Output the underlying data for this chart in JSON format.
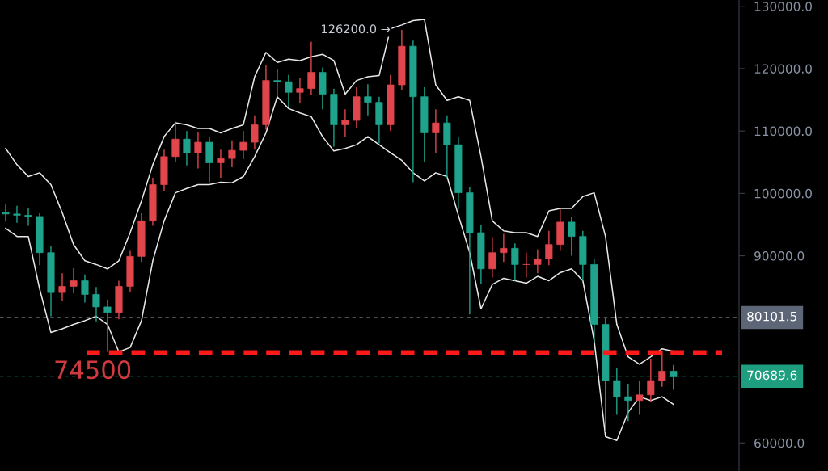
{
  "chart_data": {
    "type": "candlestick",
    "categories": [
      null,
      null,
      null,
      null,
      null,
      null,
      null,
      null,
      null,
      null,
      null,
      null,
      null,
      null,
      null,
      null,
      null,
      null,
      null,
      null,
      null,
      null,
      null,
      null,
      null,
      null,
      null,
      null,
      null,
      null,
      null,
      null,
      null,
      null,
      null,
      null,
      null,
      null,
      null,
      null,
      null,
      null,
      null,
      null,
      null,
      null,
      null,
      null,
      null,
      null,
      null,
      null,
      null,
      null,
      null,
      null,
      null,
      null,
      null,
      null
    ],
    "ohlc": [
      [
        97000,
        98200,
        95500,
        96700
      ],
      [
        96700,
        98000,
        95300,
        96500
      ],
      [
        96500,
        97600,
        94800,
        96300
      ],
      [
        96300,
        96800,
        88500,
        90500
      ],
      [
        90500,
        91500,
        80300,
        84100
      ],
      [
        84100,
        87200,
        82800,
        85100
      ],
      [
        85100,
        88000,
        84000,
        86000
      ],
      [
        86000,
        87000,
        82500,
        83800
      ],
      [
        83800,
        85000,
        79500,
        81800
      ],
      [
        81800,
        83000,
        74600,
        80900
      ],
      [
        80900,
        86000,
        79800,
        85100
      ],
      [
        85100,
        90800,
        84200,
        89900
      ],
      [
        89900,
        96800,
        89000,
        95600
      ],
      [
        95600,
        102500,
        94800,
        101400
      ],
      [
        101400,
        107000,
        100300,
        105900
      ],
      [
        105900,
        111500,
        105000,
        108700
      ],
      [
        108700,
        110000,
        104500,
        106500
      ],
      [
        106500,
        109800,
        104000,
        108200
      ],
      [
        108200,
        109000,
        101800,
        104900
      ],
      [
        104900,
        107000,
        102500,
        105600
      ],
      [
        105600,
        108500,
        104200,
        106900
      ],
      [
        106900,
        110000,
        105500,
        108200
      ],
      [
        108200,
        112500,
        107000,
        111000
      ],
      [
        111000,
        120500,
        110200,
        118100
      ],
      [
        118100,
        120000,
        115500,
        117900
      ],
      [
        117900,
        119000,
        113800,
        116200
      ],
      [
        116200,
        118500,
        114500,
        116800
      ],
      [
        116800,
        124300,
        115800,
        119400
      ],
      [
        119400,
        120200,
        113500,
        115900
      ],
      [
        115900,
        116800,
        107500,
        111000
      ],
      [
        111000,
        113500,
        109000,
        111700
      ],
      [
        111700,
        117000,
        110500,
        115500
      ],
      [
        115500,
        117500,
        112500,
        114600
      ],
      [
        114600,
        115500,
        108000,
        111000
      ],
      [
        111000,
        119000,
        110000,
        117400
      ],
      [
        117400,
        126200,
        116500,
        123600
      ],
      [
        123600,
        124500,
        101800,
        115500
      ],
      [
        115500,
        117000,
        105000,
        109700
      ],
      [
        109700,
        113500,
        106500,
        111300
      ],
      [
        111300,
        112500,
        102500,
        107800
      ],
      [
        107800,
        109000,
        97500,
        100100
      ],
      [
        100100,
        101000,
        80600,
        93700
      ],
      [
        93700,
        95000,
        85500,
        87900
      ],
      [
        87900,
        93000,
        86500,
        90500
      ],
      [
        90500,
        93500,
        89000,
        91200
      ],
      [
        91200,
        92000,
        86000,
        88600
      ],
      [
        88600,
        90500,
        86500,
        88600
      ],
      [
        88600,
        91000,
        87200,
        89500
      ],
      [
        89500,
        94000,
        88500,
        91800
      ],
      [
        91800,
        97500,
        90800,
        95400
      ],
      [
        95400,
        96200,
        90000,
        93100
      ],
      [
        93100,
        94000,
        86000,
        88600
      ],
      [
        88600,
        89500,
        76000,
        79000
      ],
      [
        79000,
        80000,
        61700,
        70000
      ],
      [
        70000,
        72000,
        64500,
        67400
      ],
      [
        67400,
        69500,
        63500,
        66800
      ],
      [
        66800,
        70000,
        64500,
        67700
      ],
      [
        67700,
        73500,
        66500,
        70000
      ],
      [
        70000,
        74800,
        69000,
        71500
      ],
      [
        71500,
        72500,
        68500,
        70600
      ]
    ],
    "colors": [
      "#1fa38c",
      "#1fa38c",
      "#1fa38c",
      "#1fa38c",
      "#1fa38c",
      "#e0464c",
      "#e0464c",
      "#1fa38c",
      "#1fa38c",
      "#1fa38c",
      "#e0464c",
      "#e0464c",
      "#e0464c",
      "#e0464c",
      "#e0464c",
      "#e0464c",
      "#1fa38c",
      "#e0464c",
      "#1fa38c",
      "#e0464c",
      "#e0464c",
      "#e0464c",
      "#e0464c",
      "#e0464c",
      "#1fa38c",
      "#1fa38c",
      "#e0464c",
      "#e0464c",
      "#1fa38c",
      "#1fa38c",
      "#e0464c",
      "#e0464c",
      "#1fa38c",
      "#1fa38c",
      "#e0464c",
      "#e0464c",
      "#1fa38c",
      "#1fa38c",
      "#e0464c",
      "#1fa38c",
      "#1fa38c",
      "#1fa38c",
      "#1fa38c",
      "#e0464c",
      "#e0464c",
      "#1fa38c",
      "#e0464c",
      "#e0464c",
      "#e0464c",
      "#e0464c",
      "#1fa38c",
      "#1fa38c",
      "#1fa38c",
      "#1fa38c",
      "#1fa38c",
      "#1fa38c",
      "#e0464c",
      "#e0464c",
      "#e0464c",
      "#1fa38c"
    ],
    "series": [
      {
        "type": "line",
        "color": "#e8e8e8",
        "values": [
          107200,
          104600,
          102700,
          103300,
          101400,
          96900,
          91800,
          89200,
          88600,
          87900,
          89200,
          93700,
          98800,
          104600,
          109100,
          111300,
          111000,
          110400,
          110400,
          109700,
          110400,
          111000,
          118700,
          122600,
          121000,
          121500,
          121300,
          121900,
          122300,
          121300,
          115900,
          118100,
          118700,
          118900,
          126400,
          127000,
          127700,
          127900,
          117400,
          114900,
          115500,
          114900,
          105900,
          95600,
          94000,
          93700,
          93700,
          93100,
          97200,
          97600,
          97600,
          99500,
          100100,
          93100,
          79000,
          73800,
          72600,
          73800,
          75100,
          74700
        ]
      },
      {
        "type": "line",
        "color": "#e8e8e8",
        "values": [
          94400,
          93100,
          93100,
          84700,
          77700,
          78300,
          79000,
          79600,
          80300,
          79000,
          74600,
          75300,
          79600,
          89200,
          95600,
          100100,
          100800,
          101400,
          101400,
          101800,
          101700,
          102700,
          105900,
          109700,
          115500,
          113600,
          112900,
          112300,
          109100,
          106800,
          107200,
          107800,
          109100,
          107800,
          106500,
          105300,
          103300,
          102000,
          103300,
          102700,
          96500,
          90500,
          81500,
          85400,
          86400,
          86000,
          85600,
          86700,
          86000,
          87300,
          87900,
          86000,
          76400,
          61000,
          60400,
          64900,
          67400,
          66800,
          67400,
          66200
        ]
      }
    ],
    "ylim": [
      55500,
      131000
    ],
    "yticks": [
      {
        "value": 60000,
        "label": "60000.0"
      },
      {
        "value": 90000,
        "label": "90000.0"
      },
      {
        "value": 100000,
        "label": "100000.0"
      },
      {
        "value": 110000,
        "label": "110000.0"
      },
      {
        "value": 120000,
        "label": "120000.0"
      },
      {
        "value": 130000,
        "label": "130000.0"
      }
    ],
    "ref_lines": [
      {
        "axis": "y",
        "value": 80101.5,
        "label": "80101.5",
        "color": "#9aa0a8",
        "line_style": "dashed"
      },
      {
        "axis": "y",
        "value": 70689.6,
        "label": "70689.6",
        "color": "#1f9e7f",
        "line_style": "dashed"
      },
      {
        "axis": "y",
        "value": 74500,
        "label": "74500",
        "color": "#ff1a1a",
        "line_style": "dashed"
      }
    ],
    "annotations": [
      "126200.0 →"
    ],
    "grid": false,
    "legend": false
  }
}
